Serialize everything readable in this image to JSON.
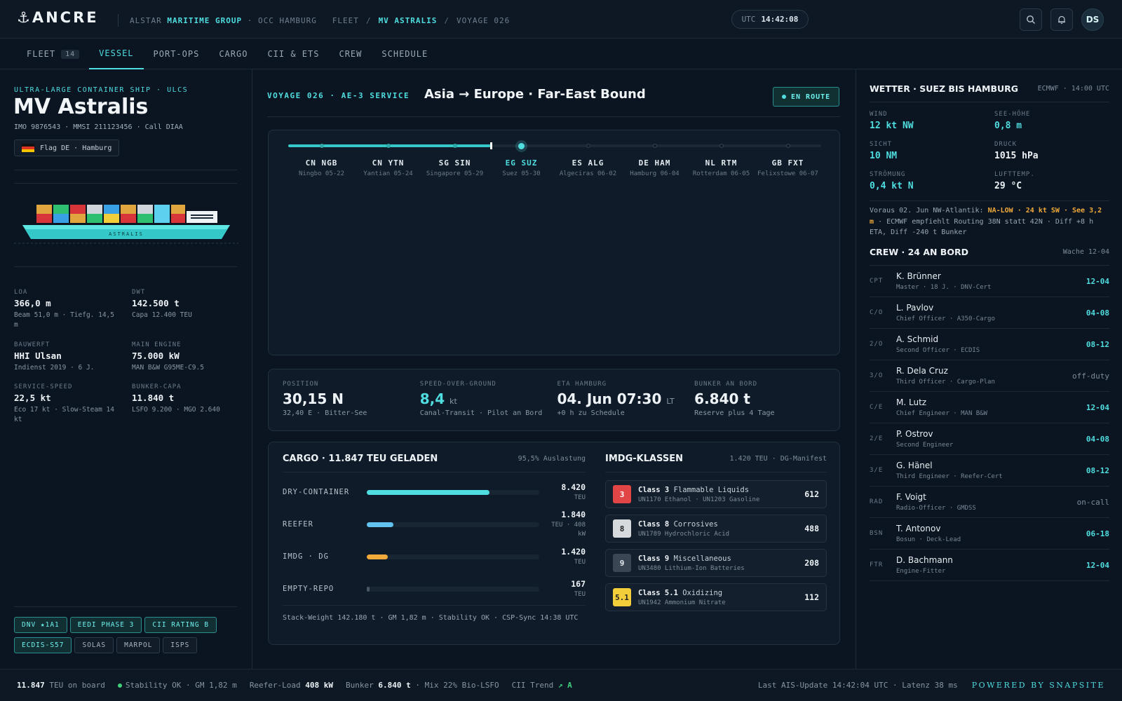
{
  "app": {
    "logo": "ANCRE",
    "crumb_org": "ALSTAR",
    "crumb_group": "MARITIME GROUP",
    "crumb_occ": "· OCC HAMBURG",
    "crumb_fleet": "FLEET",
    "sep": "/",
    "crumb_vessel": "MV ASTRALIS",
    "crumb_voyage": "VOYAGE 026",
    "utc_label": "UTC",
    "utc_time": "14:42:08",
    "avatar": "DS"
  },
  "tabs": [
    {
      "label": "FLEET",
      "badge": "14"
    },
    {
      "label": "VESSEL"
    },
    {
      "label": "PORT-OPS"
    },
    {
      "label": "CARGO"
    },
    {
      "label": "CII & ETS"
    },
    {
      "label": "CREW"
    },
    {
      "label": "SCHEDULE"
    }
  ],
  "vessel": {
    "type": "ULTRA-LARGE CONTAINER SHIP · ULCS",
    "name": "MV Astralis",
    "ids": "IMO 9876543 · MMSI 211123456 · Call DIAA",
    "flag": "Flag DE · Hamburg",
    "hull_text": "ASTRALIS",
    "specs": [
      {
        "label": "LOA",
        "value": "366,0 m",
        "sub": "Beam 51,0 m · Tiefg. 14,5 m"
      },
      {
        "label": "DWT",
        "value": "142.500 t",
        "sub": "Capa 12.400 TEU"
      },
      {
        "label": "BAUWERFT",
        "value": "HHI Ulsan",
        "sub": "Indienst 2019 · 6 J."
      },
      {
        "label": "MAIN ENGINE",
        "value": "75.000 kW",
        "sub": "MAN B&W G95ME-C9.5"
      },
      {
        "label": "SERVICE-SPEED",
        "value": "22,5 kt",
        "sub": "Eco 17 kt · Slow-Steam 14 kt"
      },
      {
        "label": "BUNKER-CAPA",
        "value": "11.840 t",
        "sub": "LSFO 9.200 · MGO 2.640"
      }
    ],
    "certs": [
      "DNV ★1A1",
      "EEDI PHASE 3",
      "CII RATING B",
      "ECDIS-S57",
      "SOLAS",
      "MARPOL",
      "ISPS"
    ]
  },
  "voyage": {
    "label": "VOYAGE 026 · AE-3 SERVICE",
    "route": "Asia → Europe · Far-East Bound",
    "status": "EN ROUTE",
    "stops": [
      {
        "code": "CN NGB",
        "detail": "Ningbo 05-22"
      },
      {
        "code": "CN YTN",
        "detail": "Yantian 05-24"
      },
      {
        "code": "SG SIN",
        "detail": "Singapore 05-29"
      },
      {
        "code": "EG SUZ",
        "detail": "Suez 05-30"
      },
      {
        "code": "ES ALG",
        "detail": "Algeciras 06-02"
      },
      {
        "code": "DE HAM",
        "detail": "Hamburg 06-04"
      },
      {
        "code": "NL RTM",
        "detail": "Rotterdam 06-05"
      },
      {
        "code": "GB FXT",
        "detail": "Felixstowe 06-07"
      }
    ],
    "progress": 0.38
  },
  "stats": [
    {
      "label": "POSITION",
      "value": "30,15 N",
      "unit": "",
      "sub": "32,40 E · Bitter-See"
    },
    {
      "label": "SPEED-OVER-GROUND",
      "value": "8,4",
      "unit": "kt",
      "sub": "Canal-Transit · Pilot an Bord"
    },
    {
      "label": "ETA HAMBURG",
      "value": "04. Jun 07:30",
      "unit": "LT",
      "sub": "+0 h zu Schedule"
    },
    {
      "label": "BUNKER AN BORD",
      "value": "6.840 t",
      "unit": "",
      "sub": "Reserve plus 4 Tage"
    }
  ],
  "cargo": {
    "title": "CARGO · 11.847 TEU GELADEN",
    "util": "95,5% Auslastung",
    "rows": [
      {
        "label": "DRY-CONTAINER",
        "value": "8.420",
        "unit": "TEU",
        "pct": 0.71,
        "color": "#4fdde0"
      },
      {
        "label": "REEFER",
        "value": "1.840",
        "unit": "TEU · 408 kW",
        "pct": 0.155,
        "color": "#62c3ef"
      },
      {
        "label": "IMDG · DG",
        "value": "1.420",
        "unit": "TEU",
        "pct": 0.12,
        "color": "#f0a93a"
      },
      {
        "label": "EMPTY-REPO",
        "value": "167",
        "unit": "TEU",
        "pct": 0.015,
        "color": "#4a5865"
      }
    ],
    "note": "Stack-Weight 142.180 t · GM 1,82 m · Stability OK · CSP-Sync 14:38 UTC"
  },
  "imdg": {
    "title": "IMDG-KLASSEN",
    "sub": "1.420 TEU · DG-Manifest",
    "items": [
      {
        "num": "3",
        "cls": "Class 3",
        "name": "Flammable Liquids",
        "un": "UN1170 Ethanol · UN1203 Gasoline",
        "count": "612",
        "bg": "#e24545",
        "fg": "#ffffff"
      },
      {
        "num": "8",
        "cls": "Class 8",
        "name": "Corrosives",
        "un": "UN1789 Hydrochloric Acid",
        "count": "488",
        "bg": "#d7dadd",
        "fg": "#222"
      },
      {
        "num": "9",
        "cls": "Class 9",
        "name": "Miscellaneous",
        "un": "UN3480 Lithium-Ion Batteries",
        "count": "208",
        "bg": "#3a4654",
        "fg": "#e8eef3"
      },
      {
        "num": "5.1",
        "cls": "Class 5.1",
        "name": "Oxidizing",
        "un": "UN1942 Ammonium Nitrate",
        "count": "112",
        "bg": "#f2cf3a",
        "fg": "#222"
      }
    ]
  },
  "weather": {
    "title": "WETTER · SUEZ BIS HAMBURG",
    "source": "ECMWF · 14:00 UTC",
    "items": [
      {
        "label": "WIND",
        "value": "12 kt NW"
      },
      {
        "label": "SEE-HÖHE",
        "value": "0,8 m"
      },
      {
        "label": "SICHT",
        "value": "10 NM"
      },
      {
        "label": "DRUCK",
        "value": "1015 hPa"
      },
      {
        "label": "STRÖMUNG",
        "value": "0,4 kt N"
      },
      {
        "label": "LUFTTEMP.",
        "value": "29 °C"
      }
    ],
    "note_pre": "Voraus 02. Jun NW-Atlantik: ",
    "note_hl": "NA-LOW · 24 kt SW · See 3,2 m",
    "note_post": " · ECMWF empfiehlt Routing 38N statt 42N · Diff +8 h ETA, Diff -240 t Bunker"
  },
  "crew": {
    "title": "CREW · 24 AN BORD",
    "watch": "Wache 12-04",
    "members": [
      {
        "rank": "CPT",
        "name": "K. Brünner",
        "role": "Master · 18 J. · DNV-Cert",
        "watch": "12-04"
      },
      {
        "rank": "C/O",
        "name": "L. Pavlov",
        "role": "Chief Officer · A350-Cargo",
        "watch": "04-08"
      },
      {
        "rank": "2/O",
        "name": "A. Schmid",
        "role": "Second Officer · ECDIS",
        "watch": "08-12"
      },
      {
        "rank": "3/O",
        "name": "R. Dela Cruz",
        "role": "Third Officer · Cargo-Plan",
        "watch": "off-duty"
      },
      {
        "rank": "C/E",
        "name": "M. Lutz",
        "role": "Chief Engineer · MAN B&W",
        "watch": "12-04"
      },
      {
        "rank": "2/E",
        "name": "P. Ostrov",
        "role": "Second Engineer",
        "watch": "04-08"
      },
      {
        "rank": "3/E",
        "name": "G. Hänel",
        "role": "Third Engineer · Reefer-Cert",
        "watch": "08-12"
      },
      {
        "rank": "RAD",
        "name": "F. Voigt",
        "role": "Radio-Officer · GMDSS",
        "watch": "on-call"
      },
      {
        "rank": "BSN",
        "name": "T. Antonov",
        "role": "Bosun · Deck-Lead",
        "watch": "06-18"
      },
      {
        "rank": "FTR",
        "name": "D. Bachmann",
        "role": "Engine-Fitter",
        "watch": "12-04"
      }
    ]
  },
  "footer": {
    "teu": "11.847",
    "teu_label": "TEU on board",
    "stability": "Stability OK · GM 1,82 m",
    "reefer_label": "Reefer-Load",
    "reefer": "408 kW",
    "bunker_label": "Bunker",
    "bunker": "6.840 t",
    "mix": "· Mix 22% Bio-LSFO",
    "cii_label": "CII Trend",
    "cii": "↗ A",
    "ais": "Last AIS-Update 14:42:04 UTC · Latenz 38 ms",
    "powered": "POWERED BY SNAPSITE"
  },
  "colors": {
    "accent": "#4fdde0",
    "background": "#0b1521",
    "warning": "#f0a93a"
  }
}
